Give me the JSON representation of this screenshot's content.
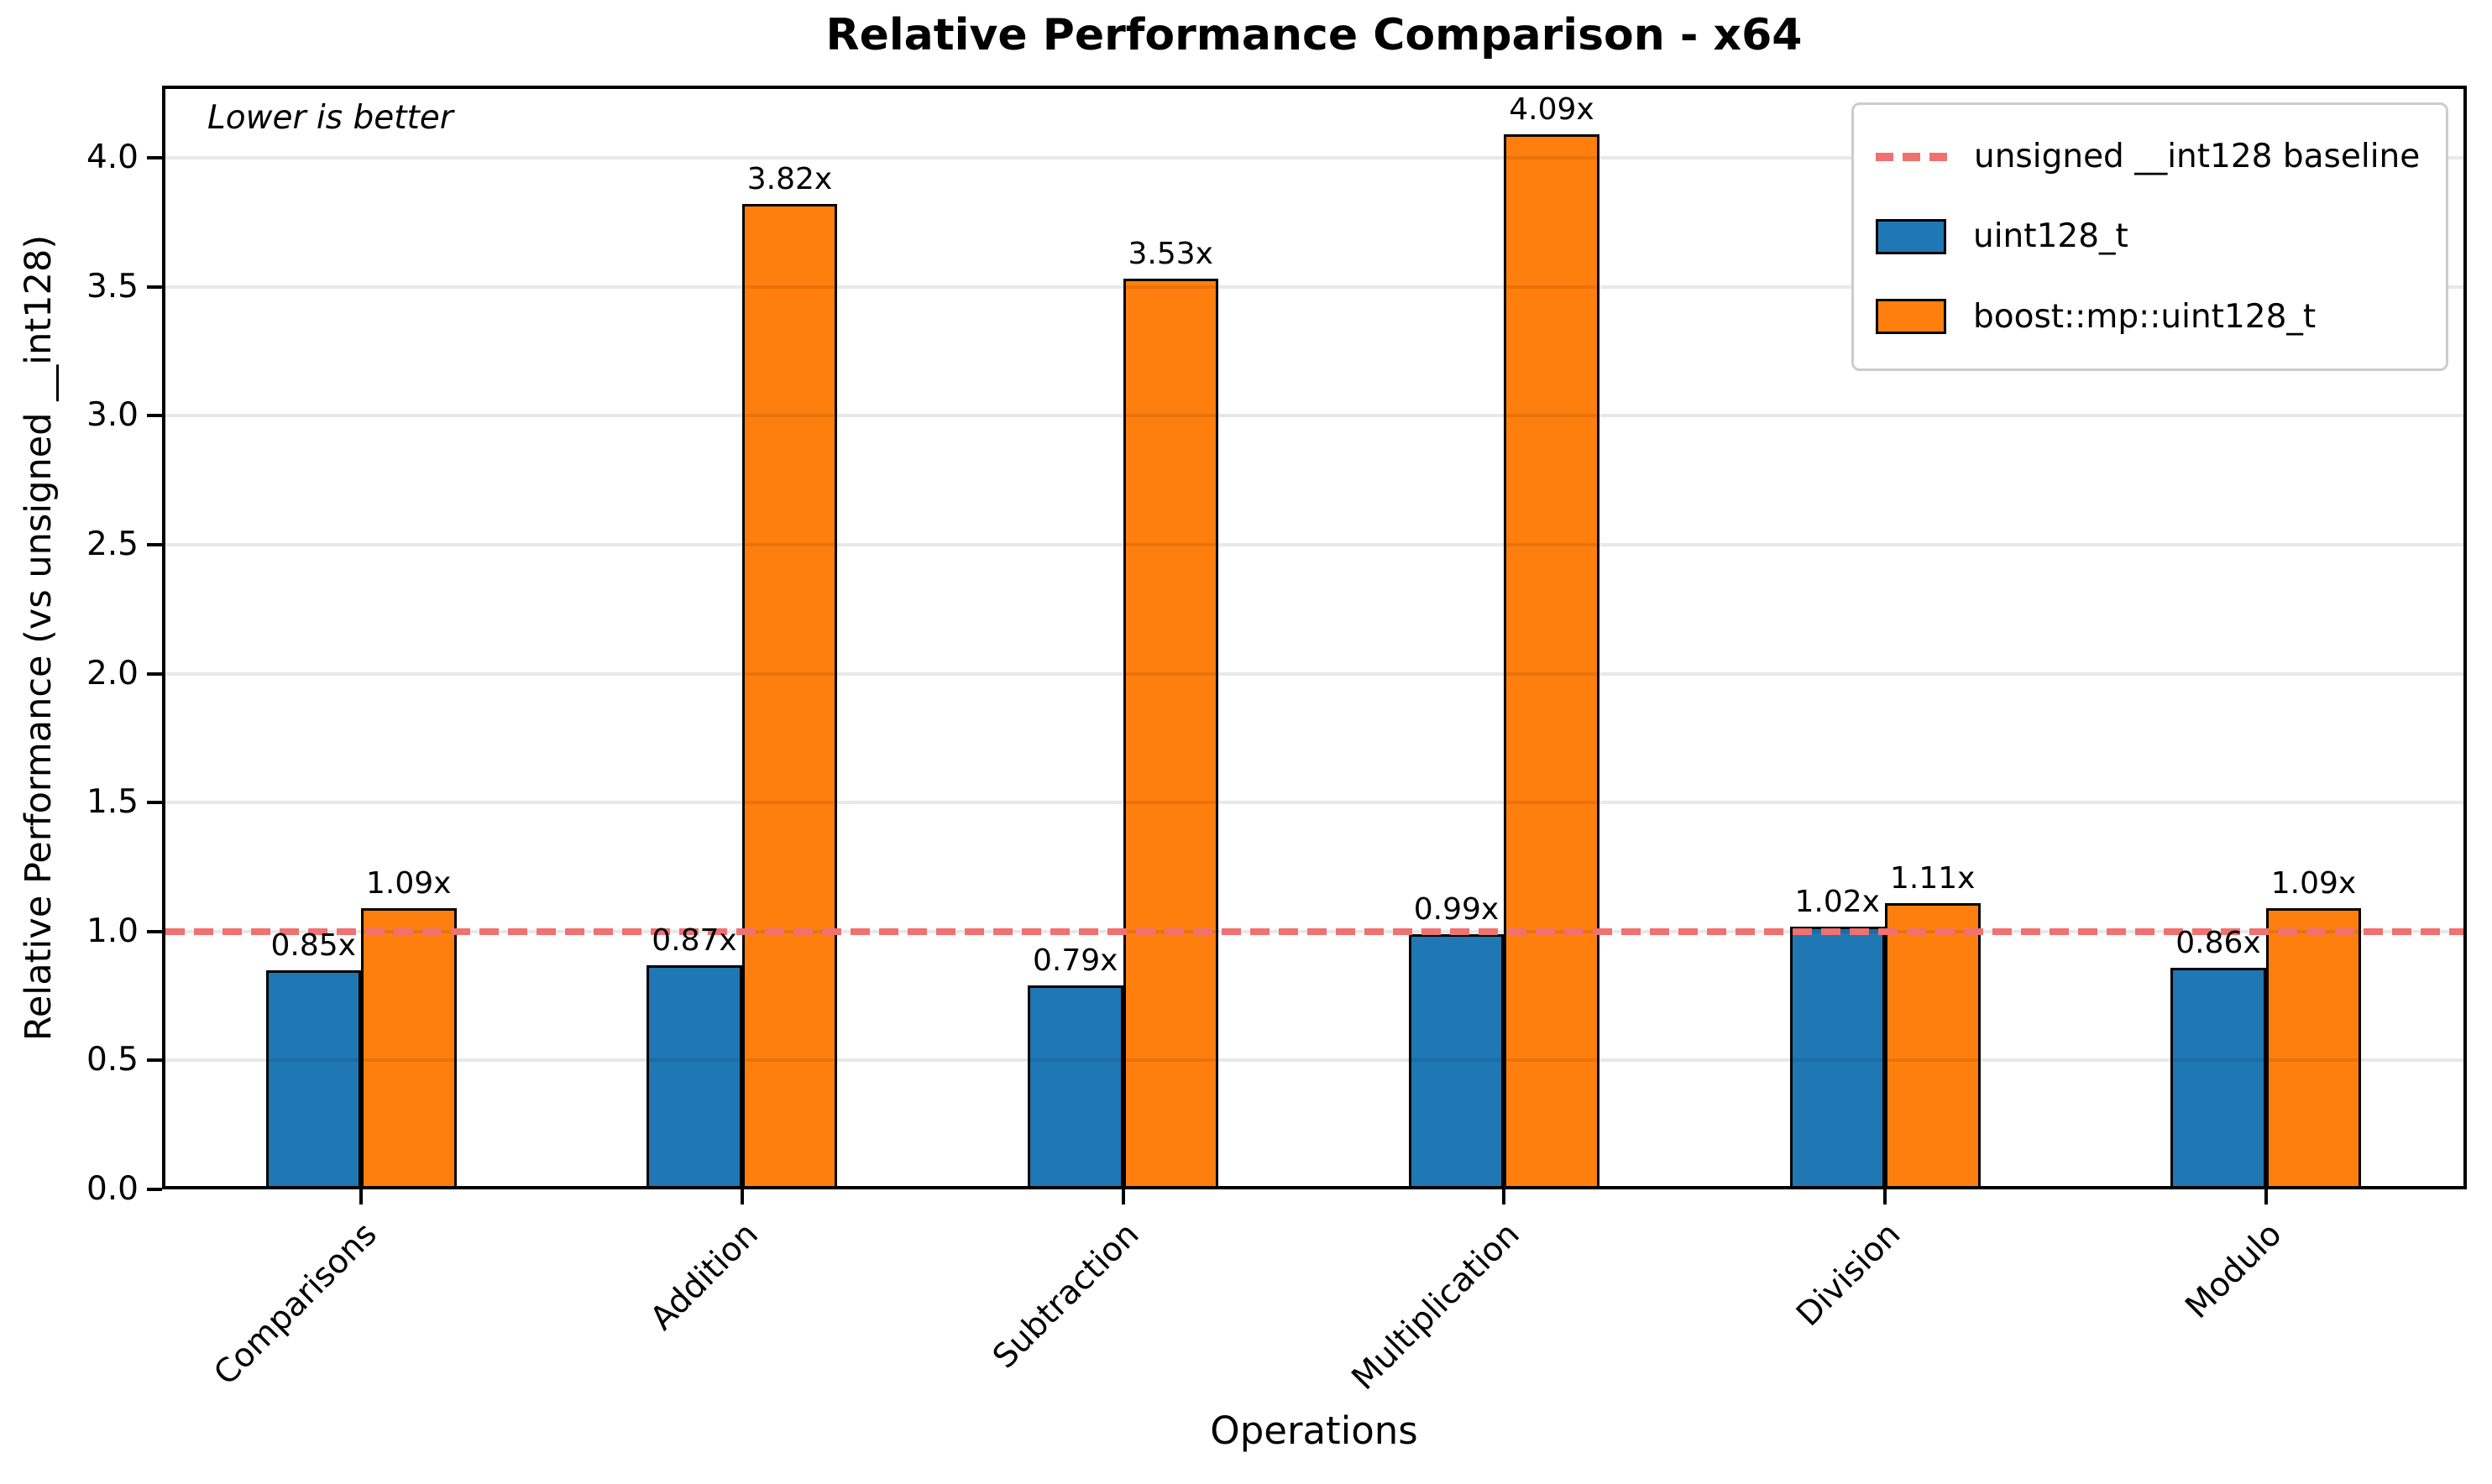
{
  "annotation": "Lower is better",
  "colors": {
    "series_blue": "#1f77b4",
    "series_orange": "#ff7f0e",
    "baseline_red": "#f17070",
    "bar_edge": "#000000",
    "grid": "#e8e8e8"
  },
  "legend": {
    "position": "upper right",
    "entries": [
      {
        "swatch": "dashed-line",
        "label": "unsigned __int128 baseline"
      },
      {
        "swatch": "blue-box",
        "label": "uint128_t"
      },
      {
        "swatch": "orange-box",
        "label": "boost::mp::uint128_t"
      }
    ]
  },
  "chart_data": {
    "type": "bar",
    "title": "Relative Performance Comparison - x64",
    "xlabel": "Operations",
    "ylabel": "Relative Performance (vs unsigned __int128)",
    "categories": [
      "Comparisons",
      "Addition",
      "Subtraction",
      "Multiplication",
      "Division",
      "Modulo"
    ],
    "series": [
      {
        "name": "uint128_t",
        "color": "#1f77b4",
        "values": [
          0.85,
          0.87,
          0.79,
          0.99,
          1.02,
          0.86
        ]
      },
      {
        "name": "boost::mp::uint128_t",
        "color": "#ff7f0e",
        "values": [
          1.09,
          3.82,
          3.53,
          4.09,
          1.11,
          1.09
        ]
      }
    ],
    "value_label_suffix": "x",
    "baseline": {
      "value": 1.0,
      "label": "unsigned __int128 baseline",
      "style": "dashed",
      "color": "#f17070"
    },
    "annotation": "Lower is better",
    "ylim": [
      0,
      4.28
    ],
    "yticks": [
      0.0,
      0.5,
      1.0,
      1.5,
      2.0,
      2.5,
      3.0,
      3.5,
      4.0
    ],
    "grid": true,
    "grid_over_bars": true,
    "legend_position": "upper right"
  }
}
